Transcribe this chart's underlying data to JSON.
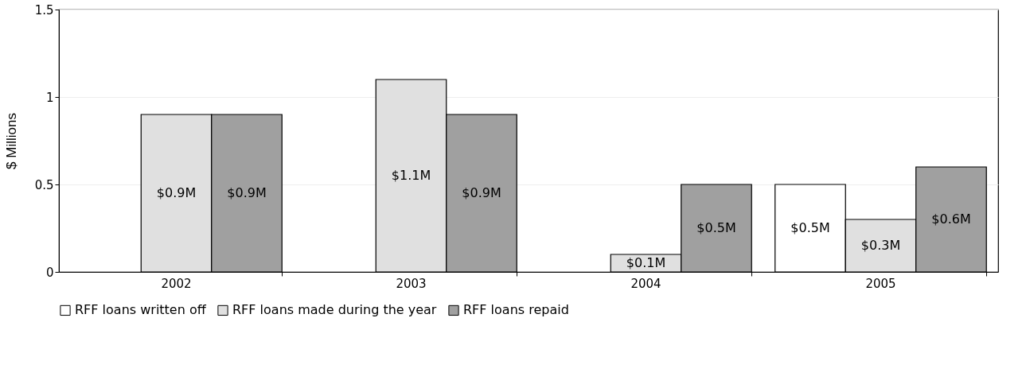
{
  "chart_data": {
    "type": "bar",
    "ylabel": "$ Millions",
    "categories": [
      "2002",
      "2003",
      "2004",
      "2005"
    ],
    "series": [
      {
        "name": "RFF loans written off",
        "color": "#ffffff",
        "values": [
          null,
          null,
          null,
          0.5
        ],
        "value_labels": [
          null,
          null,
          null,
          "$0.5M"
        ]
      },
      {
        "name": "RFF loans made during the year",
        "color": "#e0e0e0",
        "values": [
          0.9,
          1.1,
          0.1,
          0.3
        ],
        "value_labels": [
          "$0.9M",
          "$1.1M",
          "$0.1M",
          "$0.3M"
        ]
      },
      {
        "name": "RFF loans repaid",
        "color": "#a0a0a0",
        "values": [
          0.9,
          0.9,
          0.5,
          0.6
        ],
        "value_labels": [
          "$0.9M",
          "$0.9M",
          "$0.5M",
          "$0.6M"
        ]
      }
    ],
    "ylim": [
      0,
      1.5
    ],
    "yticks": [
      0,
      0.5,
      1,
      1.5
    ],
    "grid": "y",
    "legend": "bottom"
  }
}
